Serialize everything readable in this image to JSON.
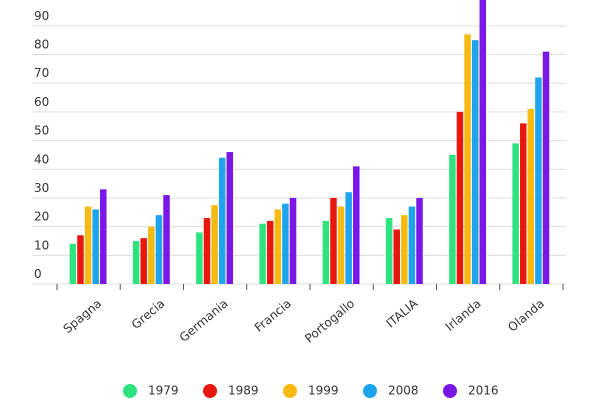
{
  "chart_data": {
    "type": "bar",
    "categories": [
      "Spagna",
      "Grecia",
      "Germania",
      "Francia",
      "Portogallo",
      "ITALIA",
      "Irlanda",
      "Olanda"
    ],
    "series": [
      {
        "name": "1979",
        "color": "#2ee37f",
        "values": [
          14,
          15,
          18,
          21,
          22,
          23,
          45,
          49
        ]
      },
      {
        "name": "1989",
        "color": "#e8170f",
        "values": [
          17,
          16,
          23,
          22,
          30,
          19,
          60,
          56
        ]
      },
      {
        "name": "1999",
        "color": "#f7ba10",
        "values": [
          27,
          20,
          27.5,
          26,
          27,
          24,
          87,
          61
        ]
      },
      {
        "name": "2008",
        "color": "#1ea4ec",
        "values": [
          26,
          24,
          44,
          28,
          32,
          27,
          85,
          72
        ]
      },
      {
        "name": "2016",
        "color": "#7a17e6",
        "values": [
          33,
          31,
          46,
          30,
          41,
          30,
          99,
          81
        ]
      }
    ],
    "ylim": [
      0,
      99
    ],
    "yticks": [
      0,
      10,
      20,
      30,
      40,
      50,
      60,
      70,
      80,
      90
    ],
    "grid": true
  }
}
